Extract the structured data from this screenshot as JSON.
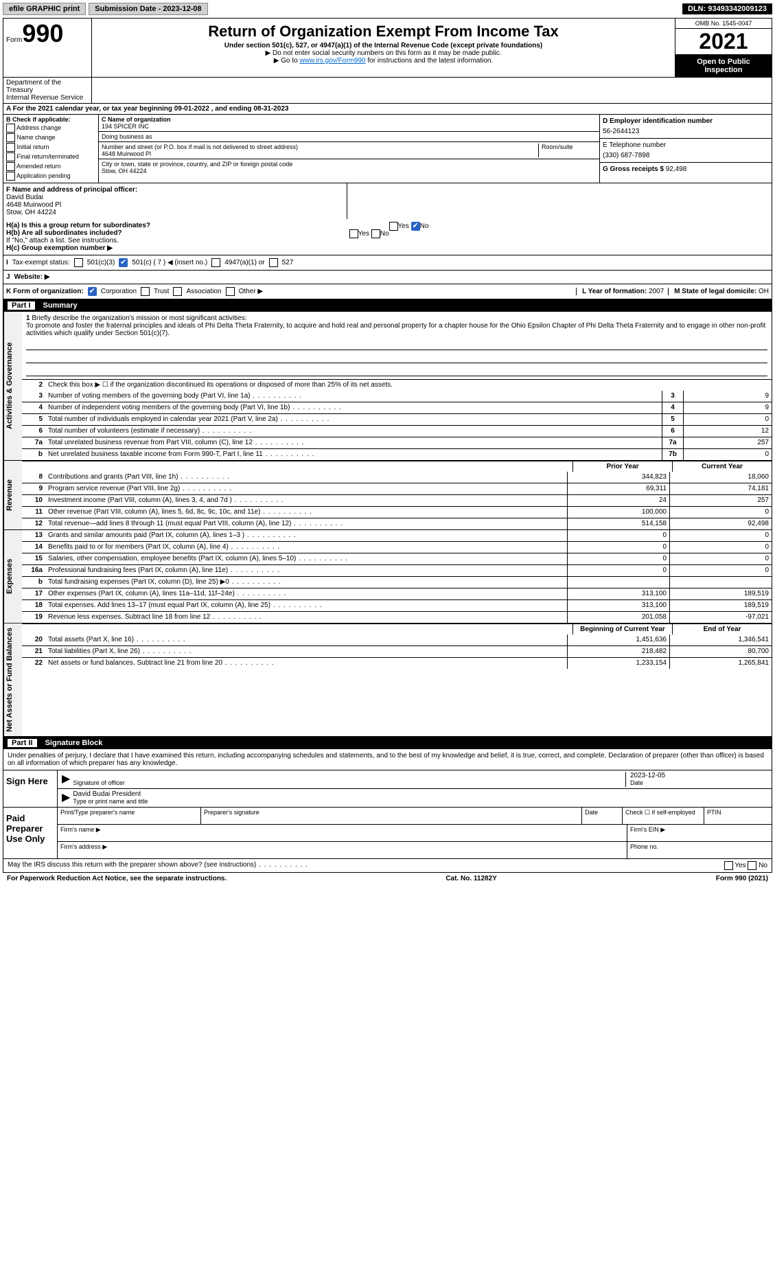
{
  "topbar": {
    "efile": "efile GRAPHIC print",
    "submission_label": "Submission Date - 2023-12-08",
    "dln": "DLN: 93493342009123"
  },
  "header": {
    "form_word": "Form",
    "form_num": "990",
    "title": "Return of Organization Exempt From Income Tax",
    "sub1": "Under section 501(c), 527, or 4947(a)(1) of the Internal Revenue Code (except private foundations)",
    "sub2": "▶ Do not enter social security numbers on this form as it may be made public.",
    "sub3_pre": "▶ Go to ",
    "sub3_link": "www.irs.gov/Form990",
    "sub3_post": " for instructions and the latest information.",
    "omb": "OMB No. 1545-0047",
    "year": "2021",
    "open": "Open to Public Inspection",
    "dept": "Department of the Treasury",
    "irs": "Internal Revenue Service"
  },
  "rowA": "A For the 2021 calendar year, or tax year beginning 09-01-2022   , and ending 08-31-2023",
  "B": {
    "label": "B Check if applicable:",
    "opts": [
      "Address change",
      "Name change",
      "Initial return",
      "Final return/terminated",
      "Amended return",
      "Application pending"
    ]
  },
  "C": {
    "name_label": "C Name of organization",
    "name": "194 SPICER INC",
    "dba_label": "Doing business as",
    "street_label": "Number and street (or P.O. box if mail is not delivered to street address)",
    "room_label": "Room/suite",
    "street": "4648 Muirwood Pl",
    "city_label": "City or town, state or province, country, and ZIP or foreign postal code",
    "city": "Stow, OH  44224"
  },
  "D": {
    "ein_label": "D Employer identification number",
    "ein": "56-2644123",
    "tel_label": "E Telephone number",
    "tel": "(330) 687-7898",
    "gross_label": "G Gross receipts $",
    "gross": "92,498"
  },
  "F": {
    "label": "F Name and address of principal officer:",
    "name": "David Budai",
    "addr1": "4648 Muirwood Pl",
    "addr2": "Stow, OH  44224"
  },
  "H": {
    "a": "H(a)  Is this a group return for subordinates?",
    "b": "H(b)  Are all subordinates included?",
    "note": "If \"No,\" attach a list. See instructions.",
    "c": "H(c)  Group exemption number ▶"
  },
  "I": {
    "label": "Tax-exempt status:",
    "opts": [
      "501(c)(3)",
      "501(c) ( 7 ) ◀ (insert no.)",
      "4947(a)(1) or",
      "527"
    ]
  },
  "J": "Website: ▶",
  "K": "K Form of organization:",
  "K_opts": [
    "Corporation",
    "Trust",
    "Association",
    "Other ▶"
  ],
  "L": {
    "label": "L Year of formation: ",
    "val": "2007"
  },
  "M": {
    "label": "M State of legal domicile: ",
    "val": "OH"
  },
  "part1": {
    "num": "Part I",
    "title": "Summary"
  },
  "mission_label": "Briefly describe the organization's mission or most significant activities:",
  "mission": "To promote and foster the fraternal principles and ideals of Phi Delta Theta Fraternity, to acquire and hold real and personal property for a chapter house for the Ohio Epsilon Chapter of Phi Delta Theta Fraternity and to engage in other non-profit activities which qualify under Section 501(c)(7).",
  "q2": "Check this box ▶ ☐ if the organization discontinued its operations or disposed of more than 25% of its net assets.",
  "rows_gov": [
    {
      "n": "3",
      "t": "Number of voting members of the governing body (Part VI, line 1a)",
      "box": "3",
      "v": "9"
    },
    {
      "n": "4",
      "t": "Number of independent voting members of the governing body (Part VI, line 1b)",
      "box": "4",
      "v": "9"
    },
    {
      "n": "5",
      "t": "Total number of individuals employed in calendar year 2021 (Part V, line 2a)",
      "box": "5",
      "v": "0"
    },
    {
      "n": "6",
      "t": "Total number of volunteers (estimate if necessary)",
      "box": "6",
      "v": "12"
    },
    {
      "n": "7a",
      "t": "Total unrelated business revenue from Part VIII, column (C), line 12",
      "box": "7a",
      "v": "257"
    },
    {
      "n": "b",
      "t": "Net unrelated business taxable income from Form 990-T, Part I, line 11",
      "box": "7b",
      "v": "0"
    }
  ],
  "hdr_prior": "Prior Year",
  "hdr_curr": "Current Year",
  "rows_rev": [
    {
      "n": "8",
      "t": "Contributions and grants (Part VIII, line 1h)",
      "p": "344,823",
      "c": "18,060"
    },
    {
      "n": "9",
      "t": "Program service revenue (Part VIII, line 2g)",
      "p": "69,311",
      "c": "74,181"
    },
    {
      "n": "10",
      "t": "Investment income (Part VIII, column (A), lines 3, 4, and 7d )",
      "p": "24",
      "c": "257"
    },
    {
      "n": "11",
      "t": "Other revenue (Part VIII, column (A), lines 5, 6d, 8c, 9c, 10c, and 11e)",
      "p": "100,000",
      "c": "0"
    },
    {
      "n": "12",
      "t": "Total revenue—add lines 8 through 11 (must equal Part VIII, column (A), line 12)",
      "p": "514,158",
      "c": "92,498"
    }
  ],
  "rows_exp": [
    {
      "n": "13",
      "t": "Grants and similar amounts paid (Part IX, column (A), lines 1–3 )",
      "p": "0",
      "c": "0"
    },
    {
      "n": "14",
      "t": "Benefits paid to or for members (Part IX, column (A), line 4)",
      "p": "0",
      "c": "0"
    },
    {
      "n": "15",
      "t": "Salaries, other compensation, employee benefits (Part IX, column (A), lines 5–10)",
      "p": "0",
      "c": "0"
    },
    {
      "n": "16a",
      "t": "Professional fundraising fees (Part IX, column (A), line 11e)",
      "p": "0",
      "c": "0"
    },
    {
      "n": "b",
      "t": "Total fundraising expenses (Part IX, column (D), line 25) ▶0",
      "p": "",
      "c": ""
    },
    {
      "n": "17",
      "t": "Other expenses (Part IX, column (A), lines 11a–11d, 11f–24e)",
      "p": "313,100",
      "c": "189,519"
    },
    {
      "n": "18",
      "t": "Total expenses. Add lines 13–17 (must equal Part IX, column (A), line 25)",
      "p": "313,100",
      "c": "189,519"
    },
    {
      "n": "19",
      "t": "Revenue less expenses. Subtract line 18 from line 12",
      "p": "201,058",
      "c": "-97,021"
    }
  ],
  "hdr_boy": "Beginning of Current Year",
  "hdr_eoy": "End of Year",
  "rows_net": [
    {
      "n": "20",
      "t": "Total assets (Part X, line 16)",
      "p": "1,451,636",
      "c": "1,346,541"
    },
    {
      "n": "21",
      "t": "Total liabilities (Part X, line 26)",
      "p": "218,482",
      "c": "80,700"
    },
    {
      "n": "22",
      "t": "Net assets or fund balances. Subtract line 21 from line 20",
      "p": "1,233,154",
      "c": "1,265,841"
    }
  ],
  "vtabs": {
    "gov": "Activities & Governance",
    "rev": "Revenue",
    "exp": "Expenses",
    "net": "Net Assets or Fund Balances"
  },
  "part2": {
    "num": "Part II",
    "title": "Signature Block"
  },
  "sig_decl": "Under penalties of perjury, I declare that I have examined this return, including accompanying schedules and statements, and to the best of my knowledge and belief, it is true, correct, and complete. Declaration of preparer (other than officer) is based on all information of which preparer has any knowledge.",
  "sign_here": "Sign Here",
  "sig_officer": "Signature of officer",
  "sig_date_val": "2023-12-05",
  "sig_date": "Date",
  "sig_name": "David Budai  President",
  "sig_typed": "Type or print name and title",
  "paid": "Paid Preparer Use Only",
  "prep": {
    "name": "Print/Type preparer's name",
    "sig": "Preparer's signature",
    "date": "Date",
    "check": "Check ☐ if self-employed",
    "ptin": "PTIN",
    "firm_name": "Firm's name  ▶",
    "firm_ein": "Firm's EIN ▶",
    "firm_addr": "Firm's address ▶",
    "phone": "Phone no."
  },
  "may_discuss": "May the IRS discuss this return with the preparer shown above? (see instructions)",
  "yn": {
    "yes": "Yes",
    "no": "No"
  },
  "footer": {
    "pra": "For Paperwork Reduction Act Notice, see the separate instructions.",
    "cat": "Cat. No. 11282Y",
    "form": "Form 990 (2021)"
  }
}
